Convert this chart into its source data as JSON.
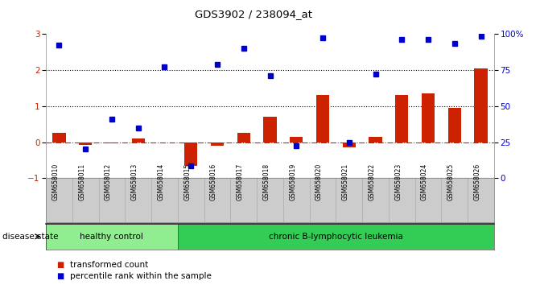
{
  "title": "GDS3902 / 238094_at",
  "samples": [
    "GSM658010",
    "GSM658011",
    "GSM658012",
    "GSM658013",
    "GSM658014",
    "GSM658015",
    "GSM658016",
    "GSM658017",
    "GSM658018",
    "GSM658019",
    "GSM658020",
    "GSM658021",
    "GSM658022",
    "GSM658023",
    "GSM658024",
    "GSM658025",
    "GSM658026"
  ],
  "transformed_count": [
    0.25,
    -0.08,
    -0.03,
    0.1,
    0.0,
    -0.65,
    -0.1,
    0.25,
    0.7,
    0.15,
    1.3,
    -0.15,
    0.15,
    1.3,
    1.35,
    0.95,
    2.05
  ],
  "percentile_rank": [
    2.7,
    -0.2,
    0.65,
    0.4,
    2.1,
    -0.65,
    2.15,
    2.6,
    1.85,
    -0.1,
    2.9,
    0.0,
    1.9,
    2.85,
    2.85,
    2.75,
    2.95
  ],
  "groups": [
    {
      "label": "healthy control",
      "start": 0,
      "end": 5,
      "color": "#90EE90"
    },
    {
      "label": "chronic B-lymphocytic leukemia",
      "start": 5,
      "end": 17,
      "color": "#33CC55"
    }
  ],
  "bar_color": "#CC2200",
  "dot_color": "#0000CC",
  "ylim_left": [
    -1,
    3
  ],
  "ylim_right": [
    0,
    100
  ],
  "yticks_left": [
    -1,
    0,
    1,
    2,
    3
  ],
  "yticks_right": [
    0,
    25,
    50,
    75,
    100
  ],
  "ytick_labels_right": [
    "0",
    "25",
    "50",
    "75",
    "100%"
  ],
  "hline_0_style": "dashdot",
  "hline_0_color": "#CC2200",
  "hline_dotted_color": "#000000",
  "bg_color": "#FFFFFF",
  "label_bg_color": "#CCCCCC",
  "disease_state_label": "disease state",
  "legend_items": [
    {
      "color": "#CC2200",
      "label": "transformed count"
    },
    {
      "color": "#0000CC",
      "label": "percentile rank within the sample"
    }
  ]
}
